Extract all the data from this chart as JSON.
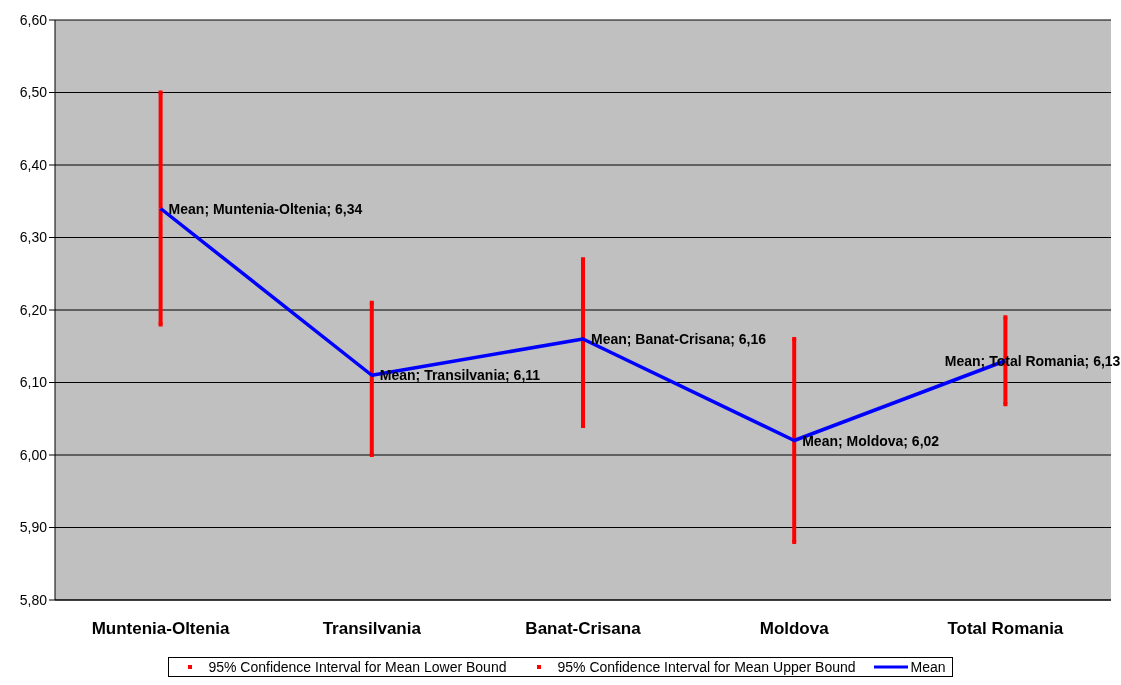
{
  "chart_data": {
    "type": "line",
    "categories": [
      "Muntenia-Oltenia",
      "Transilvania",
      "Banat-Crisana",
      "Moldova",
      "Total Romania"
    ],
    "series": [
      {
        "name": "95% Confidence Interval for Mean Lower Bound",
        "type": "scatter",
        "color": "#ff0000",
        "values": [
          6.18,
          6.0,
          6.04,
          5.88,
          6.07
        ]
      },
      {
        "name": "95% Confidence Interval for Mean Upper Bound",
        "type": "scatter",
        "color": "#ff0000",
        "values": [
          6.5,
          6.21,
          6.27,
          6.16,
          6.19
        ]
      },
      {
        "name": "Mean",
        "type": "line",
        "color": "#0000ff",
        "values": [
          6.34,
          6.11,
          6.16,
          6.02,
          6.13
        ],
        "value_labels": [
          "Mean; Muntenia-Oltenia; 6,34",
          "Mean; Transilvania; 6,11",
          "Mean; Banat-Crisana; 6,16",
          "Mean; Moldova; 6,02",
          "Mean; Total Romania; 6,13"
        ]
      }
    ],
    "ylim": [
      5.8,
      6.6
    ],
    "yticks": [
      {
        "value": 5.8,
        "label": "5,80"
      },
      {
        "value": 5.9,
        "label": "5,90"
      },
      {
        "value": 6.0,
        "label": "6,00"
      },
      {
        "value": 6.1,
        "label": "6,10"
      },
      {
        "value": 6.2,
        "label": "6,20"
      },
      {
        "value": 6.3,
        "label": "6,30"
      },
      {
        "value": 6.4,
        "label": "6,40"
      },
      {
        "value": 6.5,
        "label": "6,50"
      },
      {
        "value": 6.6,
        "label": "6,60"
      }
    ],
    "grid": "y",
    "legend": "bottom"
  }
}
